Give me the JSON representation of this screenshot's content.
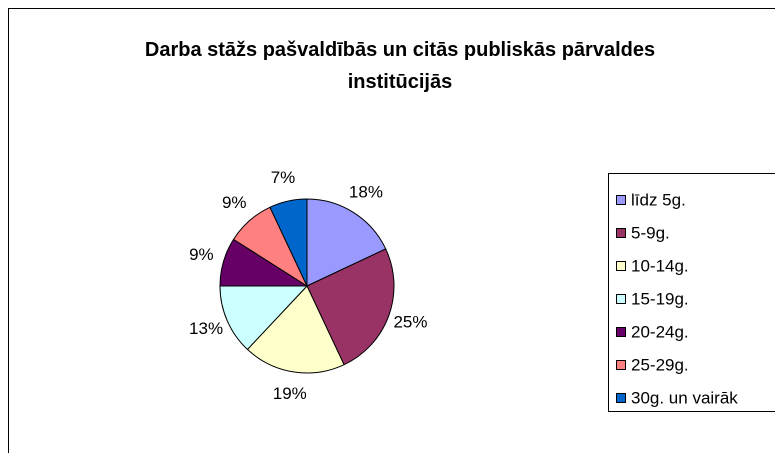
{
  "chart_data": {
    "type": "pie",
    "title": "Darba stāžs pašvaldībās un citās publiskās pārvaldes institūcijās",
    "categories": [
      "līdz 5g.",
      "5-9g.",
      "10-14g.",
      "15-19g.",
      "20-24g.",
      "25-29g.",
      "30g. un vairāk"
    ],
    "values": [
      18,
      25,
      19,
      13,
      9,
      9,
      7
    ],
    "value_labels": [
      "18%",
      "25%",
      "19%",
      "13%",
      "9%",
      "9%",
      "7%"
    ],
    "colors": [
      "#9999FF",
      "#993366",
      "#FFFFCC",
      "#CCFFFF",
      "#660066",
      "#FF8080",
      "#0066CC"
    ],
    "legend": "right"
  }
}
